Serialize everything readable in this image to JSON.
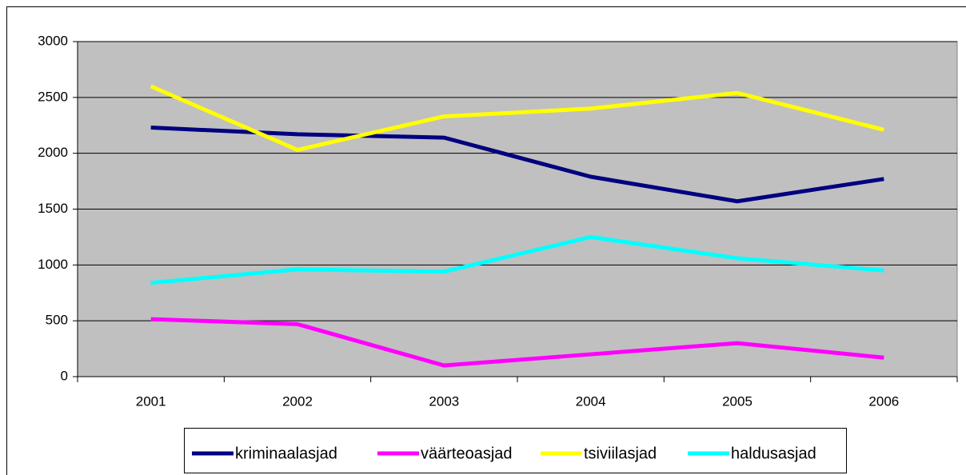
{
  "chart_data": {
    "type": "line",
    "categories": [
      "2001",
      "2002",
      "2003",
      "2004",
      "2005",
      "2006"
    ],
    "series": [
      {
        "name": "kriminaalasjad",
        "color": "#000080",
        "values": [
          2230,
          2170,
          2140,
          1790,
          1570,
          1770
        ]
      },
      {
        "name": "väärteoasjad",
        "color": "#ff00ff",
        "values": [
          515,
          470,
          100,
          200,
          300,
          170
        ]
      },
      {
        "name": "tsiviilasjad",
        "color": "#ffff00",
        "values": [
          2600,
          2030,
          2330,
          2400,
          2540,
          2210
        ]
      },
      {
        "name": "haldusasjad",
        "color": "#00ffff",
        "values": [
          840,
          960,
          940,
          1250,
          1060,
          950
        ]
      }
    ],
    "ylim": [
      0,
      3000
    ],
    "yticks": [
      0,
      500,
      1000,
      1500,
      2000,
      2500,
      3000
    ],
    "grid": true,
    "legend": "bottom",
    "plot_background": "#c0c0c0"
  }
}
